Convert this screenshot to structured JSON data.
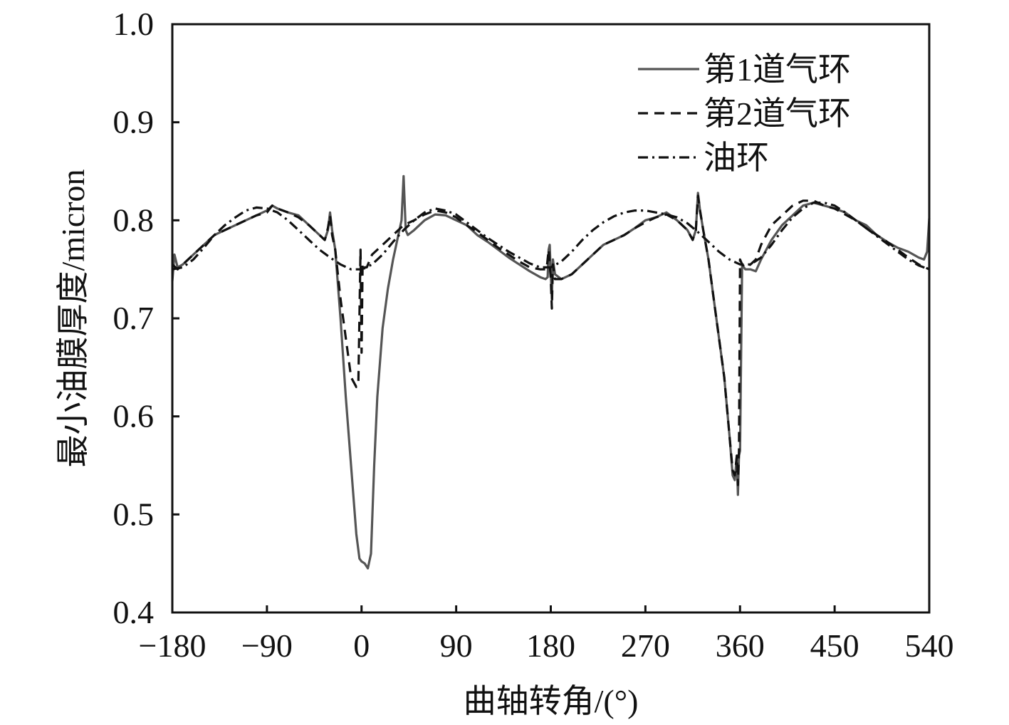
{
  "chart_data": {
    "type": "line",
    "xlabel": "曲轴转角/(°)",
    "ylabel": "最小油膜厚度/micron",
    "xlim": [
      -180,
      540
    ],
    "ylim": [
      0.4,
      1.0
    ],
    "xticks": [
      -180,
      -90,
      0,
      90,
      180,
      270,
      360,
      450,
      540
    ],
    "xtick_labels": [
      "−180",
      "−90",
      "0",
      "90",
      "180",
      "270",
      "360",
      "450",
      "540"
    ],
    "yticks": [
      0.4,
      0.5,
      0.6,
      0.7,
      0.8,
      0.9,
      1.0
    ],
    "ytick_labels": [
      "0.4",
      "0.5",
      "0.6",
      "0.7",
      "0.8",
      "0.9",
      "1.0"
    ],
    "grid": false,
    "legend_position": "top-right",
    "series": [
      {
        "name": "第1道气环",
        "style": "solid",
        "color": "#555555",
        "x": [
          -180,
          -178,
          -175,
          -170,
          -160,
          -150,
          -140,
          -130,
          -120,
          -110,
          -100,
          -90,
          -85,
          -80,
          -70,
          -60,
          -50,
          -40,
          -35,
          -32,
          -30,
          -28,
          -25,
          -20,
          -15,
          -10,
          -5,
          -2,
          0,
          3,
          6,
          9,
          12,
          15,
          20,
          25,
          30,
          35,
          38,
          40,
          42,
          44,
          50,
          60,
          70,
          80,
          90,
          100,
          110,
          120,
          130,
          140,
          150,
          160,
          170,
          175,
          177,
          178,
          179,
          180,
          181,
          182,
          184,
          190,
          200,
          210,
          220,
          230,
          240,
          250,
          260,
          270,
          280,
          290,
          300,
          310,
          315,
          318,
          320,
          322,
          325,
          330,
          335,
          340,
          345,
          350,
          353,
          355,
          357,
          358,
          359,
          360,
          362,
          365,
          370,
          375,
          380,
          390,
          400,
          410,
          420,
          430,
          440,
          450,
          460,
          470,
          480,
          490,
          500,
          510,
          520,
          530,
          535,
          538,
          540
        ],
        "y": [
          0.738,
          0.765,
          0.752,
          0.755,
          0.765,
          0.775,
          0.785,
          0.79,
          0.795,
          0.8,
          0.805,
          0.81,
          0.815,
          0.812,
          0.808,
          0.805,
          0.795,
          0.785,
          0.78,
          0.79,
          0.808,
          0.79,
          0.77,
          0.7,
          0.62,
          0.55,
          0.48,
          0.455,
          0.452,
          0.45,
          0.445,
          0.46,
          0.55,
          0.62,
          0.69,
          0.73,
          0.76,
          0.785,
          0.8,
          0.845,
          0.79,
          0.785,
          0.79,
          0.8,
          0.806,
          0.805,
          0.8,
          0.795,
          0.785,
          0.778,
          0.77,
          0.762,
          0.755,
          0.748,
          0.742,
          0.74,
          0.742,
          0.77,
          0.775,
          0.745,
          0.72,
          0.76,
          0.745,
          0.74,
          0.745,
          0.755,
          0.765,
          0.775,
          0.78,
          0.785,
          0.792,
          0.8,
          0.803,
          0.808,
          0.8,
          0.79,
          0.78,
          0.79,
          0.828,
          0.81,
          0.79,
          0.76,
          0.72,
          0.68,
          0.64,
          0.58,
          0.54,
          0.535,
          0.56,
          0.52,
          0.56,
          0.565,
          0.755,
          0.75,
          0.75,
          0.748,
          0.76,
          0.78,
          0.795,
          0.805,
          0.815,
          0.818,
          0.815,
          0.812,
          0.808,
          0.8,
          0.795,
          0.785,
          0.778,
          0.772,
          0.768,
          0.762,
          0.76,
          0.768,
          0.802
        ]
      },
      {
        "name": "第2道气环",
        "style": "dashed",
        "color": "#111111",
        "x": [
          -180,
          -175,
          -170,
          -160,
          -150,
          -140,
          -130,
          -120,
          -110,
          -100,
          -90,
          -85,
          -80,
          -70,
          -60,
          -50,
          -40,
          -35,
          -32,
          -30,
          -28,
          -25,
          -20,
          -15,
          -10,
          -5,
          -3,
          -1,
          0,
          1,
          2,
          3,
          5,
          10,
          20,
          30,
          40,
          50,
          60,
          70,
          80,
          90,
          100,
          110,
          120,
          130,
          140,
          150,
          160,
          170,
          176,
          178,
          180,
          181,
          182,
          184,
          190,
          200,
          210,
          220,
          230,
          240,
          250,
          260,
          270,
          280,
          290,
          300,
          310,
          315,
          318,
          320,
          322,
          325,
          330,
          335,
          340,
          345,
          350,
          353,
          355,
          357,
          358,
          359,
          360,
          362,
          365,
          370,
          375,
          380,
          390,
          400,
          410,
          420,
          430,
          440,
          450,
          460,
          470,
          480,
          490,
          500,
          510,
          520,
          530,
          540
        ],
        "y": [
          0.755,
          0.75,
          0.755,
          0.765,
          0.775,
          0.785,
          0.79,
          0.795,
          0.8,
          0.805,
          0.808,
          0.815,
          0.812,
          0.808,
          0.803,
          0.795,
          0.785,
          0.78,
          0.792,
          0.805,
          0.785,
          0.77,
          0.72,
          0.68,
          0.64,
          0.63,
          0.635,
          0.77,
          0.665,
          0.755,
          0.75,
          0.752,
          0.752,
          0.765,
          0.775,
          0.785,
          0.795,
          0.8,
          0.806,
          0.81,
          0.808,
          0.803,
          0.795,
          0.788,
          0.78,
          0.772,
          0.765,
          0.758,
          0.752,
          0.75,
          0.75,
          0.77,
          0.74,
          0.71,
          0.755,
          0.74,
          0.74,
          0.745,
          0.755,
          0.765,
          0.775,
          0.78,
          0.785,
          0.792,
          0.798,
          0.803,
          0.806,
          0.8,
          0.79,
          0.78,
          0.79,
          0.825,
          0.81,
          0.79,
          0.76,
          0.72,
          0.68,
          0.64,
          0.58,
          0.545,
          0.54,
          0.56,
          0.53,
          0.565,
          0.76,
          0.755,
          0.752,
          0.755,
          0.76,
          0.775,
          0.795,
          0.805,
          0.815,
          0.82,
          0.82,
          0.815,
          0.812,
          0.806,
          0.8,
          0.792,
          0.785,
          0.778,
          0.77,
          0.762,
          0.755,
          0.75
        ]
      },
      {
        "name": "油环",
        "style": "dashdot",
        "color": "#111111",
        "x": [
          -180,
          -170,
          -160,
          -150,
          -140,
          -130,
          -120,
          -110,
          -100,
          -90,
          -80,
          -70,
          -60,
          -50,
          -40,
          -30,
          -20,
          -10,
          0,
          10,
          20,
          30,
          40,
          50,
          60,
          70,
          80,
          90,
          100,
          110,
          120,
          130,
          140,
          150,
          160,
          170,
          180,
          190,
          200,
          210,
          220,
          230,
          240,
          250,
          260,
          270,
          280,
          290,
          300,
          310,
          320,
          330,
          340,
          350,
          360,
          370,
          380,
          390,
          400,
          410,
          420,
          430,
          440,
          450,
          460,
          470,
          480,
          490,
          500,
          510,
          520,
          530,
          540
        ],
        "y": [
          0.75,
          0.752,
          0.76,
          0.772,
          0.785,
          0.795,
          0.803,
          0.81,
          0.813,
          0.812,
          0.808,
          0.8,
          0.79,
          0.78,
          0.77,
          0.762,
          0.755,
          0.75,
          0.75,
          0.755,
          0.765,
          0.778,
          0.79,
          0.8,
          0.808,
          0.812,
          0.81,
          0.806,
          0.798,
          0.79,
          0.782,
          0.775,
          0.768,
          0.762,
          0.756,
          0.752,
          0.752,
          0.758,
          0.768,
          0.78,
          0.79,
          0.798,
          0.804,
          0.808,
          0.81,
          0.81,
          0.808,
          0.806,
          0.803,
          0.797,
          0.788,
          0.778,
          0.768,
          0.76,
          0.755,
          0.755,
          0.762,
          0.775,
          0.79,
          0.803,
          0.812,
          0.818,
          0.818,
          0.815,
          0.808,
          0.8,
          0.792,
          0.784,
          0.776,
          0.768,
          0.76,
          0.754,
          0.75
        ]
      }
    ]
  }
}
